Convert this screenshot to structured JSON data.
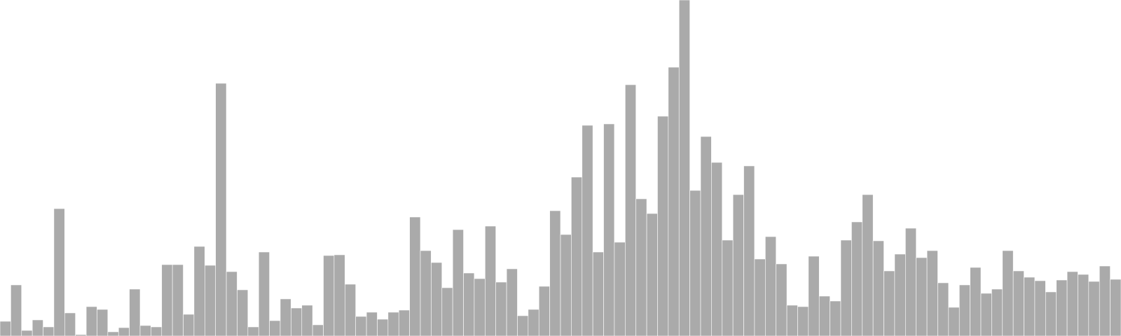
{
  "chart_data": {
    "type": "bar",
    "title": "",
    "xlabel": "",
    "ylabel": "",
    "legend": "none",
    "grid": false,
    "axes_visible": false,
    "bar_color": "#aaaaaa",
    "bar_stroke": "#ffffff",
    "ylim": [
      0,
      480
    ],
    "values": [
      21,
      73,
      8,
      23,
      13,
      182,
      33,
      2,
      42,
      38,
      6,
      12,
      67,
      15,
      13,
      102,
      102,
      31,
      128,
      101,
      361,
      92,
      66,
      13,
      120,
      22,
      53,
      40,
      44,
      16,
      115,
      116,
      74,
      28,
      34,
      24,
      34,
      37,
      170,
      122,
      105,
      69,
      152,
      90,
      82,
      157,
      77,
      96,
      29,
      38,
      71,
      179,
      145,
      227,
      301,
      120,
      303,
      134,
      359,
      196,
      175,
      314,
      384,
      480,
      208,
      285,
      248,
      137,
      202,
      243,
      110,
      142,
      103,
      44,
      42,
      114,
      57,
      50,
      137,
      163,
      202,
      136,
      93,
      117,
      154,
      112,
      122,
      76,
      41,
      73,
      98,
      61,
      67,
      122,
      93,
      84,
      79,
      63,
      80,
      92,
      88,
      78,
      100,
      81
    ]
  }
}
